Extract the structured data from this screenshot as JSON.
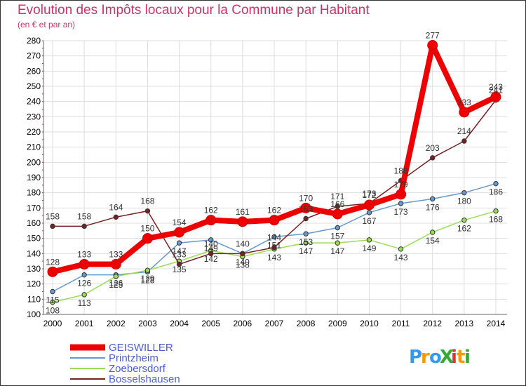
{
  "chart_data": {
    "type": "line",
    "title": "Evolution des Impôts locaux pour la Commune par Habitant",
    "subtitle": "(en € et par an)",
    "xlabel": "",
    "ylabel": "",
    "x": [
      "2000",
      "2001",
      "2002",
      "2003",
      "2004",
      "2005",
      "2006",
      "2007",
      "2008",
      "2009",
      "2010",
      "2011",
      "2012",
      "2013",
      "2014"
    ],
    "ylim": [
      100,
      280
    ],
    "yticks": [
      100,
      110,
      120,
      130,
      140,
      150,
      160,
      170,
      180,
      190,
      200,
      210,
      220,
      230,
      240,
      250,
      260,
      270,
      280
    ],
    "grid": true,
    "legend_position": "bottom-left",
    "series": [
      {
        "name": "GEISWILLER",
        "color": "#ee0000",
        "values": [
          128,
          133,
          133,
          150,
          154,
          162,
          161,
          162,
          170,
          166,
          172,
          179,
          277,
          233,
          243
        ]
      },
      {
        "name": "Printzheim",
        "color": "#6699cc",
        "values": [
          115,
          126,
          126,
          128,
          147,
          149,
          140,
          151,
          153,
          157,
          167,
          173,
          176,
          180,
          186
        ]
      },
      {
        "name": "Zoebersdorf",
        "color": "#99dd55",
        "values": [
          108,
          113,
          125,
          129,
          135,
          142,
          138,
          143,
          147,
          147,
          149,
          143,
          154,
          162,
          168
        ]
      },
      {
        "name": "Bosselshausen",
        "color": "#772222",
        "values": [
          158,
          158,
          164,
          168,
          133,
          140,
          140,
          144,
          163,
          171,
          173,
          188,
          203,
          214,
          241
        ]
      }
    ]
  },
  "brand": {
    "logo_text": "ProXiti"
  }
}
